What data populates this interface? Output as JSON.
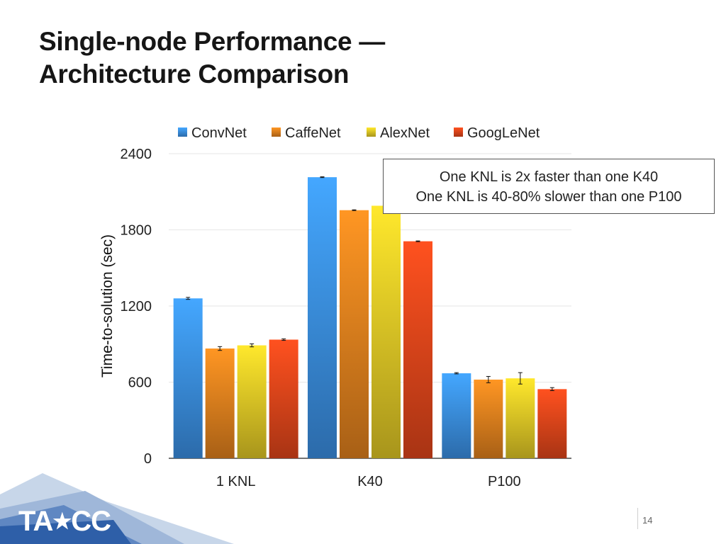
{
  "slide": {
    "title_line1": "Single-node Performance —",
    "title_line2": "Architecture Comparison",
    "page_number": "14",
    "logo_text_left": "TA",
    "logo_text_right": "CC"
  },
  "callout": {
    "line1": "One KNL is 2x faster than one K40",
    "line2": "One KNL is 40-80% slower than one P100"
  },
  "chart_data": {
    "type": "bar",
    "title": "",
    "xlabel": "",
    "ylabel": "Time-to-solution (sec)",
    "ylim": [
      0,
      2400
    ],
    "yticks": [
      0,
      600,
      1200,
      1800,
      2400
    ],
    "grid": true,
    "legend_position": "top",
    "categories": [
      "1 KNL",
      "K40",
      "P100"
    ],
    "series": [
      {
        "name": "ConvNet",
        "color": "#3d95ec",
        "values": [
          1260,
          2215,
          670
        ],
        "errors": [
          8,
          3,
          5
        ]
      },
      {
        "name": "CaffeNet",
        "color": "#e9861f",
        "values": [
          865,
          1955,
          620
        ],
        "errors": [
          15,
          3,
          25
        ]
      },
      {
        "name": "AlexNet",
        "color": "#e9cf27",
        "values": [
          890,
          1990,
          630
        ],
        "errors": [
          12,
          3,
          45
        ]
      },
      {
        "name": "GoogLeNet",
        "color": "#e9481c",
        "values": [
          935,
          1710,
          545
        ],
        "errors": [
          6,
          3,
          12
        ]
      }
    ]
  }
}
